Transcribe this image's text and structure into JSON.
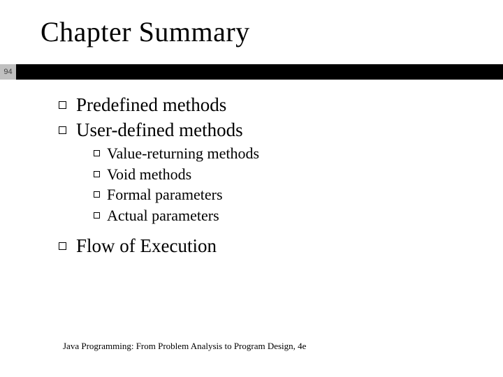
{
  "slide": {
    "title": "Chapter Summary",
    "page_number": "94",
    "bar_color": "#000000",
    "pagebox_bg": "#c0c0c0",
    "footer": "Java Programming: From Problem Analysis to Program Design, 4e"
  },
  "bullets": {
    "l1_1": "Predefined methods",
    "l1_2": "User-defined methods",
    "l1_3": "Flow of Execution",
    "l2_1": "Value-returning methods",
    "l2_2": "Void methods",
    "l2_3": "Formal parameters",
    "l2_4": "Actual parameters"
  }
}
